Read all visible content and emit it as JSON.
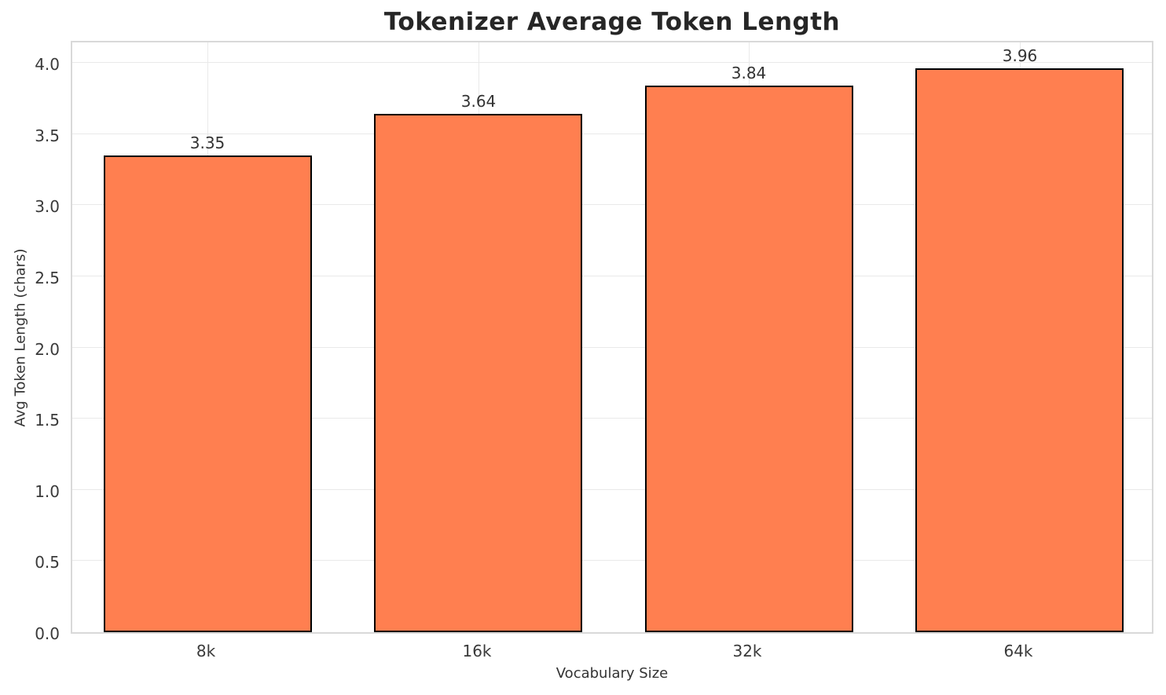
{
  "chart_data": {
    "type": "bar",
    "title": "Tokenizer Average Token Length",
    "xlabel": "Vocabulary Size",
    "ylabel": "Avg Token Length (chars)",
    "categories": [
      "8k",
      "16k",
      "32k",
      "64k"
    ],
    "values": [
      3.35,
      3.64,
      3.84,
      3.96
    ],
    "value_labels": [
      "3.35",
      "3.64",
      "3.84",
      "3.96"
    ],
    "yticks": [
      0.0,
      0.5,
      1.0,
      1.5,
      2.0,
      2.5,
      3.0,
      3.5,
      4.0
    ],
    "ytick_labels": [
      "0.0",
      "0.5",
      "1.0",
      "1.5",
      "2.0",
      "2.5",
      "3.0",
      "3.5",
      "4.0"
    ],
    "ylim": [
      0,
      4.166
    ],
    "grid": true,
    "legend": "none",
    "bar_color": "#FF7F50",
    "bar_edge_color": "#000000",
    "grid_color": "#e9e9e9",
    "spine_color": "#d9d9d9",
    "title_color": "#262626",
    "tick_color": "#3a3a3a"
  }
}
